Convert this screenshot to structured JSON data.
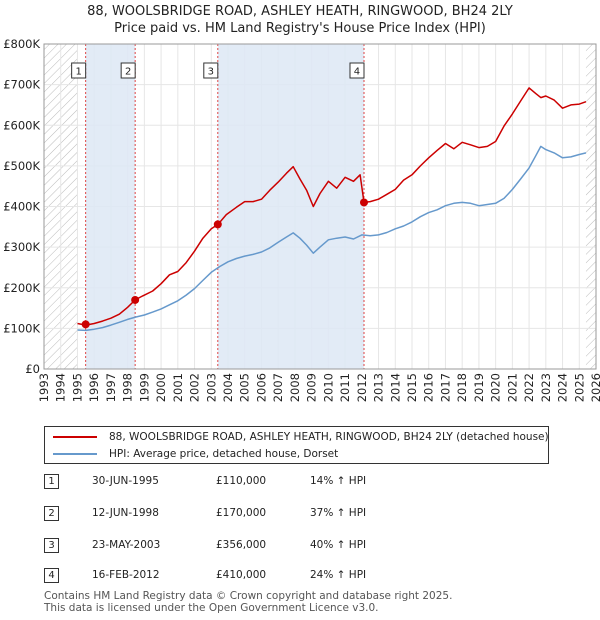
{
  "title_line1": "88, WOOLSBRIDGE ROAD, ASHLEY HEATH, RINGWOOD, BH24 2LY",
  "title_line2": "Price paid vs. HM Land Registry's House Price Index (HPI)",
  "colors": {
    "property": "#cc0000",
    "hpi": "#6699cc",
    "shade": "#dde7f5",
    "hatch": "#bbbbbb",
    "vline": "#dd4444",
    "grid": "#e6e6e6"
  },
  "chart_data": {
    "type": "line",
    "title": "88, WOOLSBRIDGE ROAD, ASHLEY HEATH, RINGWOOD, BH24 2LY — Price paid vs. HM Land Registry's House Price Index (HPI)",
    "xlabel": "",
    "ylabel": "",
    "xlim": [
      1993,
      2026
    ],
    "ylim": [
      0,
      800000
    ],
    "data_start_year": 1995,
    "data_end_year": 2025.4,
    "x_ticks": [
      1993,
      1994,
      1995,
      1996,
      1997,
      1998,
      1999,
      2000,
      2001,
      2002,
      2003,
      2004,
      2005,
      2006,
      2007,
      2008,
      2009,
      2010,
      2011,
      2012,
      2013,
      2014,
      2015,
      2016,
      2017,
      2018,
      2019,
      2020,
      2021,
      2022,
      2023,
      2024,
      2025,
      2026
    ],
    "y_ticks": [
      0,
      100000,
      200000,
      300000,
      400000,
      500000,
      600000,
      700000,
      800000
    ],
    "y_tick_labels": [
      "£0",
      "£100K",
      "£200K",
      "£300K",
      "£400K",
      "£500K",
      "£600K",
      "£700K",
      "£800K"
    ],
    "series": [
      {
        "name": "88, WOOLSBRIDGE ROAD, ASHLEY HEATH, RINGWOOD, BH24 2LY (detached house)",
        "color": "#cc0000",
        "x": [
          1995.0,
          1995.5,
          1996.0,
          1996.5,
          1997.0,
          1997.5,
          1998.0,
          1998.45,
          1998.9,
          1999.5,
          2000.0,
          2000.5,
          2001.0,
          2001.5,
          2002.0,
          2002.5,
          2003.0,
          2003.4,
          2003.9,
          2004.5,
          2005.0,
          2005.5,
          2006.0,
          2006.5,
          2007.0,
          2007.5,
          2007.9,
          2008.3,
          2008.7,
          2009.1,
          2009.5,
          2010.0,
          2010.5,
          2011.0,
          2011.5,
          2011.9,
          2012.13,
          2012.5,
          2013.0,
          2013.5,
          2014.0,
          2014.5,
          2015.0,
          2015.5,
          2016.0,
          2016.5,
          2017.0,
          2017.5,
          2018.0,
          2018.5,
          2019.0,
          2019.5,
          2020.0,
          2020.5,
          2021.0,
          2021.5,
          2022.0,
          2022.4,
          2022.7,
          2023.0,
          2023.5,
          2024.0,
          2024.5,
          2025.0,
          2025.4
        ],
        "values": [
          112000,
          108000,
          112000,
          118000,
          125000,
          135000,
          152000,
          170000,
          180000,
          192000,
          210000,
          232000,
          240000,
          262000,
          290000,
          322000,
          345000,
          356000,
          380000,
          398000,
          412000,
          412000,
          418000,
          440000,
          460000,
          482000,
          498000,
          468000,
          440000,
          400000,
          432000,
          462000,
          445000,
          472000,
          462000,
          478000,
          410000,
          412000,
          418000,
          430000,
          442000,
          465000,
          478000,
          500000,
          520000,
          538000,
          555000,
          542000,
          558000,
          552000,
          545000,
          548000,
          560000,
          598000,
          628000,
          660000,
          692000,
          678000,
          668000,
          672000,
          662000,
          642000,
          650000,
          652000,
          658000
        ]
      },
      {
        "name": "HPI: Average price, detached house, Dorset",
        "color": "#6699cc",
        "x": [
          1995.0,
          1995.5,
          1996.0,
          1996.5,
          1997.0,
          1997.5,
          1998.0,
          1998.5,
          1999.0,
          1999.5,
          2000.0,
          2000.5,
          2001.0,
          2001.5,
          2002.0,
          2002.5,
          2003.0,
          2003.5,
          2004.0,
          2004.5,
          2005.0,
          2005.5,
          2006.0,
          2006.5,
          2007.0,
          2007.5,
          2007.9,
          2008.3,
          2008.7,
          2009.1,
          2009.5,
          2010.0,
          2010.5,
          2011.0,
          2011.5,
          2012.0,
          2012.5,
          2013.0,
          2013.5,
          2014.0,
          2014.5,
          2015.0,
          2015.5,
          2016.0,
          2016.5,
          2017.0,
          2017.5,
          2018.0,
          2018.5,
          2019.0,
          2019.5,
          2020.0,
          2020.5,
          2021.0,
          2021.5,
          2022.0,
          2022.4,
          2022.7,
          2023.0,
          2023.5,
          2024.0,
          2024.5,
          2025.0,
          2025.4
        ],
        "values": [
          96000,
          95000,
          98000,
          102000,
          108000,
          115000,
          122000,
          128000,
          133000,
          140000,
          148000,
          158000,
          168000,
          182000,
          198000,
          218000,
          238000,
          252000,
          264000,
          272000,
          278000,
          282000,
          288000,
          298000,
          312000,
          325000,
          335000,
          322000,
          305000,
          285000,
          300000,
          318000,
          322000,
          325000,
          320000,
          330000,
          328000,
          330000,
          336000,
          345000,
          352000,
          362000,
          375000,
          385000,
          392000,
          402000,
          408000,
          410000,
          408000,
          402000,
          405000,
          408000,
          420000,
          442000,
          468000,
          495000,
          525000,
          548000,
          540000,
          532000,
          520000,
          522000,
          528000,
          532000
        ]
      }
    ],
    "sales": [
      {
        "num": "1",
        "x": 1995.49,
        "value": 110000,
        "date": "30-JUN-1995",
        "price": "£110,000",
        "hpi": "14% ↑ HPI"
      },
      {
        "num": "2",
        "x": 1998.45,
        "value": 170000,
        "date": "12-JUN-1998",
        "price": "£170,000",
        "hpi": "37% ↑ HPI"
      },
      {
        "num": "3",
        "x": 2003.39,
        "value": 356000,
        "date": "23-MAY-2003",
        "price": "£356,000",
        "hpi": "40% ↑ HPI"
      },
      {
        "num": "4",
        "x": 2012.13,
        "value": 410000,
        "date": "16-FEB-2012",
        "price": "£410,000",
        "hpi": "24% ↑ HPI"
      }
    ]
  },
  "legend": {
    "property_label": "88, WOOLSBRIDGE ROAD, ASHLEY HEATH, RINGWOOD, BH24 2LY (detached house)",
    "hpi_label": "HPI: Average price, detached house, Dorset"
  },
  "footer": {
    "line1": "Contains HM Land Registry data © Crown copyright and database right 2025.",
    "line2": "This data is licensed under the Open Government Licence v3.0."
  }
}
